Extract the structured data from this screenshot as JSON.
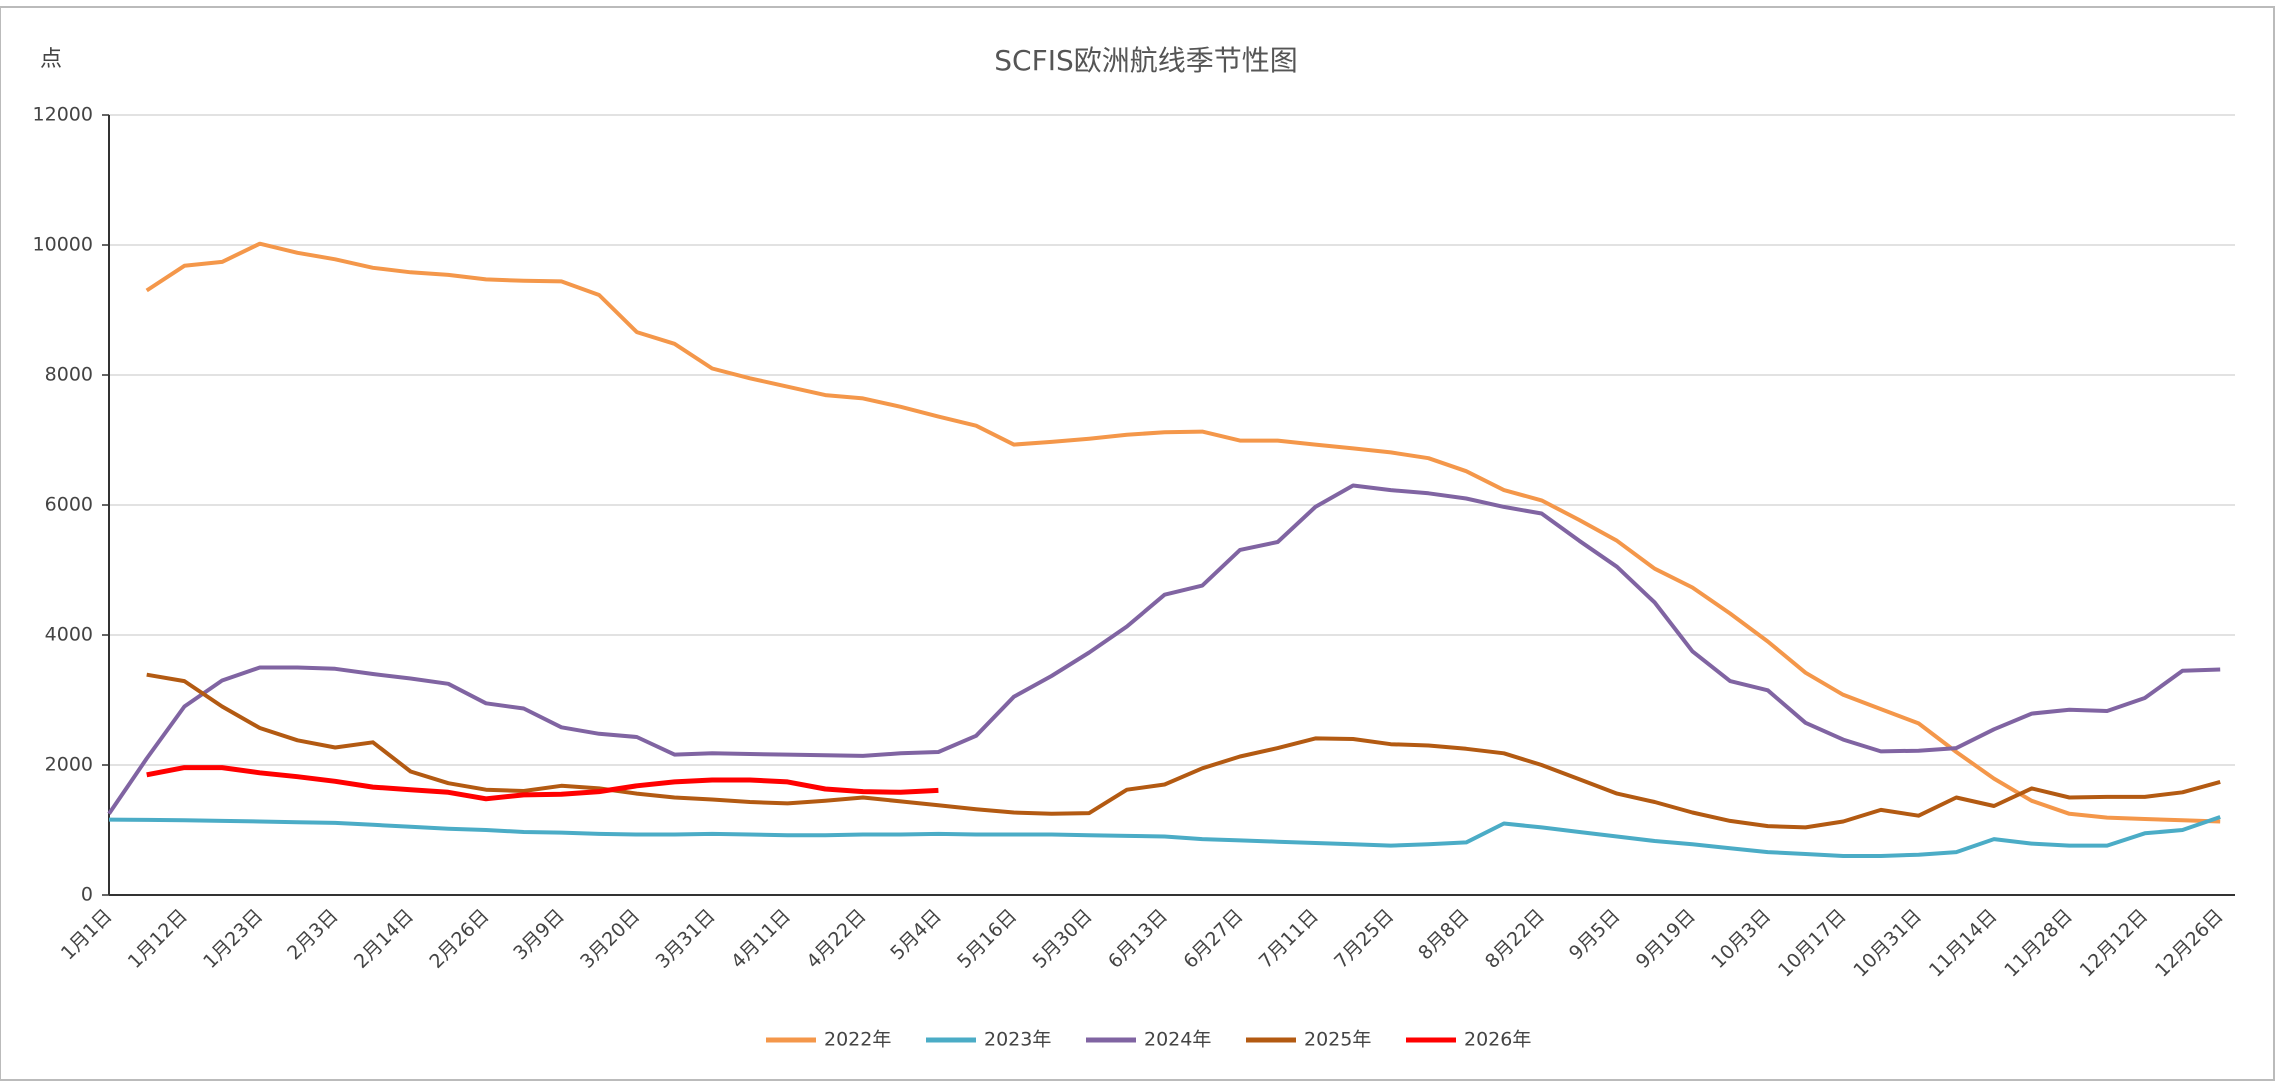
{
  "chart_data": {
    "type": "line",
    "title": "SCFIS欧洲航线季节性图",
    "y_unit": "点",
    "categories": [
      "1月1日",
      null,
      "1月12日",
      null,
      "1月23日",
      null,
      "2月3日",
      null,
      "2月14日",
      null,
      "2月26日",
      null,
      "3月9日",
      null,
      "3月20日",
      null,
      "3月31日",
      null,
      "4月11日",
      null,
      "4月22日",
      null,
      "5月4日",
      null,
      "5月16日",
      null,
      "5月30日",
      null,
      "6月13日",
      null,
      "6月27日",
      null,
      "7月11日",
      null,
      "7月25日",
      null,
      "8月8日",
      null,
      "8月22日",
      null,
      "9月5日",
      null,
      "9月19日",
      null,
      "10月3日",
      null,
      "10月17日",
      null,
      "10月31日",
      null,
      "11月14日",
      null,
      "11月28日",
      null,
      "12月12日",
      null,
      "12月26日"
    ],
    "series": [
      {
        "name": "2022年",
        "color": "#f4974a",
        "values": [
          null,
          9300,
          9680,
          9740,
          10020,
          9880,
          9780,
          9650,
          9580,
          9540,
          9470,
          9450,
          9440,
          9230,
          8660,
          8480,
          8100,
          7950,
          7820,
          7690,
          7640,
          7510,
          7360,
          7220,
          6930,
          6970,
          7020,
          7080,
          7120,
          7130,
          6990,
          6990,
          6930,
          6870,
          6810,
          6720,
          6520,
          6230,
          6070,
          5770,
          5450,
          5020,
          4730,
          4330,
          3900,
          3420,
          3080,
          2860,
          2640,
          2200,
          1790,
          1450,
          1250,
          1190,
          1170,
          1150,
          1130
        ]
      },
      {
        "name": "2023年",
        "color": "#4bacc6",
        "values": [
          1160,
          1155,
          1150,
          1140,
          1130,
          1120,
          1110,
          1080,
          1050,
          1020,
          1000,
          970,
          960,
          940,
          930,
          930,
          940,
          930,
          920,
          920,
          930,
          930,
          940,
          930,
          930,
          930,
          920,
          910,
          900,
          860,
          840,
          820,
          800,
          780,
          760,
          780,
          810,
          1100,
          1040,
          970,
          900,
          830,
          780,
          720,
          660,
          630,
          600,
          600,
          620,
          660,
          860,
          790,
          760,
          760,
          950,
          1000,
          1200
        ]
      },
      {
        "name": "2024年",
        "color": "#8064a2",
        "values": [
          1250,
          2100,
          2900,
          3300,
          3500,
          3500,
          3480,
          3400,
          3330,
          3250,
          2950,
          2870,
          2580,
          2480,
          2430,
          2160,
          2180,
          2170,
          2160,
          2150,
          2140,
          2180,
          2200,
          2450,
          3050,
          3370,
          3730,
          4130,
          4620,
          4760,
          5310,
          5430,
          5970,
          6300,
          6230,
          6180,
          6100,
          5970,
          5870,
          5450,
          5050,
          4500,
          3750,
          3290,
          3150,
          2650,
          2390,
          2210,
          2220,
          2260,
          2550,
          2790,
          2850,
          2830,
          3030,
          3450,
          3470
        ]
      },
      {
        "name": "2025年",
        "color": "#b35a12",
        "values": [
          null,
          3390,
          3290,
          2900,
          2570,
          2380,
          2270,
          2350,
          1900,
          1720,
          1620,
          1600,
          1680,
          1640,
          1560,
          1500,
          1470,
          1430,
          1410,
          1450,
          1500,
          1440,
          1380,
          1320,
          1270,
          1250,
          1260,
          1620,
          1700,
          1950,
          2130,
          2260,
          2410,
          2400,
          2320,
          2300,
          2250,
          2180,
          2000,
          1780,
          1560,
          1430,
          1270,
          1140,
          1060,
          1040,
          1130,
          1310,
          1220,
          1500,
          1370,
          1640,
          1500,
          1510,
          1510,
          1580,
          1740
        ]
      },
      {
        "name": "2026年",
        "color": "#ff0000",
        "values": [
          null,
          1850,
          1960,
          1960,
          1880,
          1820,
          1750,
          1660,
          1620,
          1580,
          1480,
          1540,
          1550,
          1590,
          1680,
          1740,
          1770,
          1770,
          1740,
          1630,
          1590,
          1580,
          1610,
          null,
          null,
          null,
          null,
          null,
          null,
          null,
          null,
          null,
          null,
          null,
          null,
          null,
          null,
          null,
          null,
          null,
          null,
          null,
          null,
          null,
          null,
          null,
          null,
          null,
          null,
          null,
          null,
          null,
          null,
          null,
          null,
          null,
          null
        ]
      }
    ],
    "ylim": [
      0,
      12000
    ],
    "yticks": [
      0,
      2000,
      4000,
      6000,
      8000,
      10000,
      12000
    ],
    "grid": true,
    "legend": "bottom"
  }
}
